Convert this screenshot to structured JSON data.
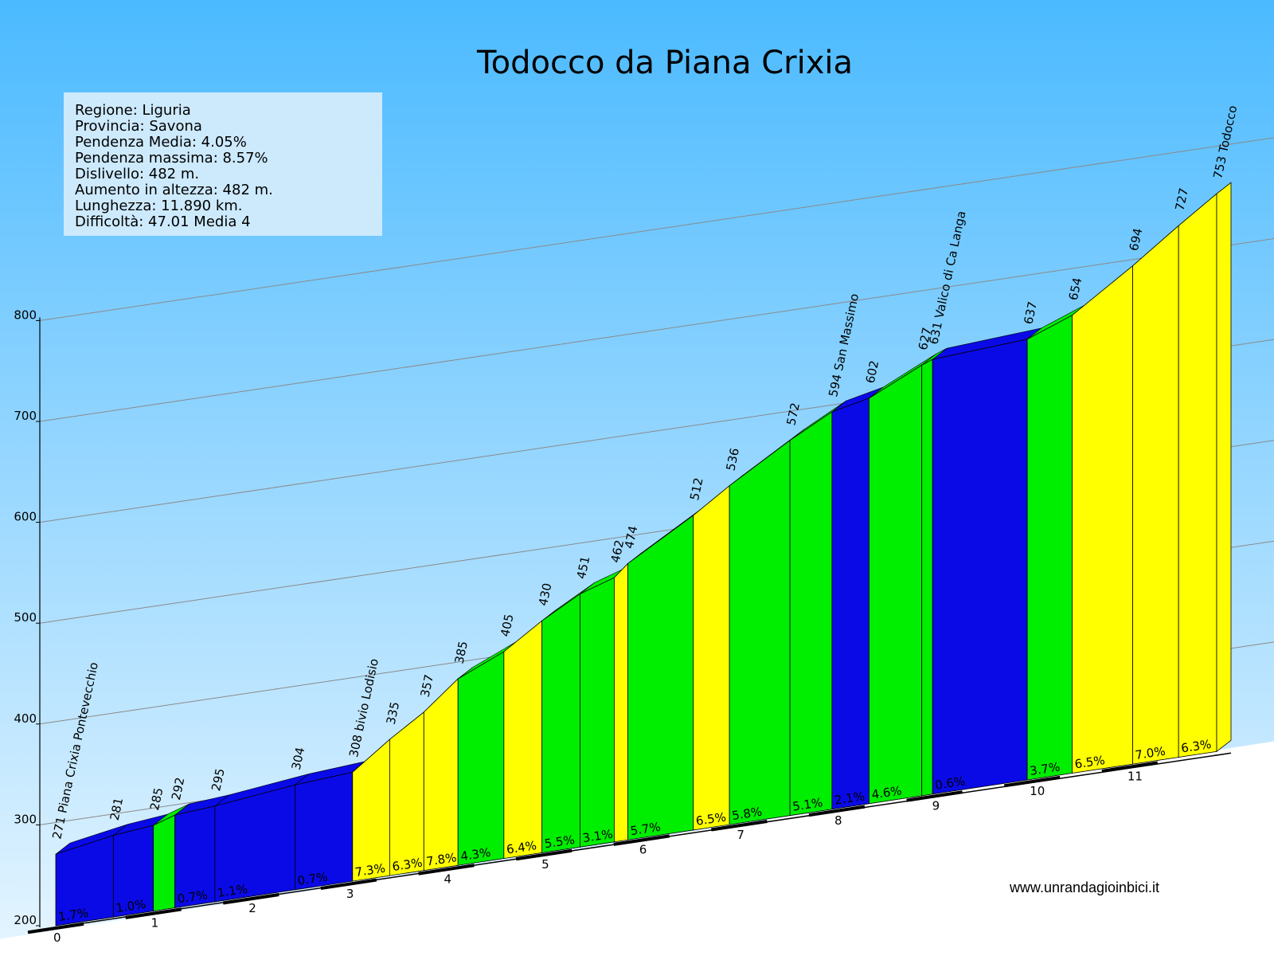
{
  "chart_data": {
    "type": "area",
    "title": "Todocco da Piana Crixia",
    "info": [
      "Regione: Liguria",
      "Provincia: Savona",
      "Pendenza Media: 4.05%",
      "Pendenza massima: 8.57%",
      "Dislivello:  482 m.",
      "Aumento in altezza:  482 m.",
      "Lunghezza:  11.890 km.",
      "Difficoltà: 47.01 Media 4"
    ],
    "ylim": [
      200,
      800
    ],
    "yticks": [
      200,
      300,
      400,
      500,
      600,
      700,
      800
    ],
    "xlim": [
      0,
      11.89
    ],
    "xticks": [
      0,
      1,
      2,
      3,
      4,
      5,
      6,
      7,
      8,
      9,
      10,
      11
    ],
    "points": [
      {
        "km": 0.0,
        "alt": 271,
        "label": "271 Piana Crixia Pontevecchio"
      },
      {
        "km": 0.59,
        "alt": 281,
        "label": "281"
      },
      {
        "km": 1.0,
        "alt": 285,
        "label": "285"
      },
      {
        "km": 1.22,
        "alt": 292,
        "label": "292"
      },
      {
        "km": 1.63,
        "alt": 295,
        "label": "295"
      },
      {
        "km": 2.45,
        "alt": 304,
        "label": "304"
      },
      {
        "km": 3.04,
        "alt": 308,
        "label": "308 bivio Lodisio"
      },
      {
        "km": 3.42,
        "alt": 335,
        "label": "335"
      },
      {
        "km": 3.77,
        "alt": 357,
        "label": "357"
      },
      {
        "km": 4.12,
        "alt": 385,
        "label": "385"
      },
      {
        "km": 4.59,
        "alt": 405,
        "label": "405"
      },
      {
        "km": 4.98,
        "alt": 430,
        "label": "430"
      },
      {
        "km": 5.37,
        "alt": 451,
        "label": "451"
      },
      {
        "km": 5.72,
        "alt": 462,
        "label": "462"
      },
      {
        "km": 5.86,
        "alt": 474,
        "label": "474"
      },
      {
        "km": 6.53,
        "alt": 512,
        "label": "512"
      },
      {
        "km": 6.9,
        "alt": 536,
        "label": "536"
      },
      {
        "km": 7.52,
        "alt": 572,
        "label": "572"
      },
      {
        "km": 7.95,
        "alt": 594,
        "label": "594 San Massimo"
      },
      {
        "km": 8.33,
        "alt": 602,
        "label": "602"
      },
      {
        "km": 8.87,
        "alt": 627,
        "label": "627"
      },
      {
        "km": 8.98,
        "alt": 631,
        "label": "631 Valico di Ca Langa"
      },
      {
        "km": 9.95,
        "alt": 637,
        "label": "637"
      },
      {
        "km": 10.41,
        "alt": 654,
        "label": "654"
      },
      {
        "km": 11.03,
        "alt": 694,
        "label": "694"
      },
      {
        "km": 11.5,
        "alt": 727,
        "label": "727"
      },
      {
        "km": 11.89,
        "alt": 753,
        "label": "753 Todocco"
      }
    ],
    "gradients": [
      "1.7%",
      "1.0%",
      "",
      "0.7%",
      "1.1%",
      "0.7%",
      "7.3%",
      "6.3%",
      "7.8%",
      "4.3%",
      "6.4%",
      "5.5%",
      "3.1%",
      "",
      "5.7%",
      "6.5%",
      "5.8%",
      "5.1%",
      "2.1%",
      "4.6%",
      "",
      "0.6%",
      "3.7%",
      "6.5%",
      "7.0%",
      "6.3%"
    ],
    "segment_colors": [
      "#0a0ae6",
      "#0a0ae6",
      "#00ee00",
      "#0a0ae6",
      "#0a0ae6",
      "#0a0ae6",
      "#ffff00",
      "#ffff00",
      "#ffff00",
      "#00ee00",
      "#ffff00",
      "#00ee00",
      "#00ee00",
      "#ffff00",
      "#00ee00",
      "#ffff00",
      "#00ee00",
      "#00ee00",
      "#0a0ae6",
      "#00ee00",
      "#00ee00",
      "#0a0ae6",
      "#00ee00",
      "#ffff00",
      "#ffff00",
      "#ffff00"
    ],
    "legend": "none",
    "grid": true
  },
  "website": "www.unrandagioinbici.it",
  "colors": {
    "sky_top": "#4bbaff",
    "sky_bottom": "#e6f5ff",
    "info_box": "#cdeafd"
  }
}
